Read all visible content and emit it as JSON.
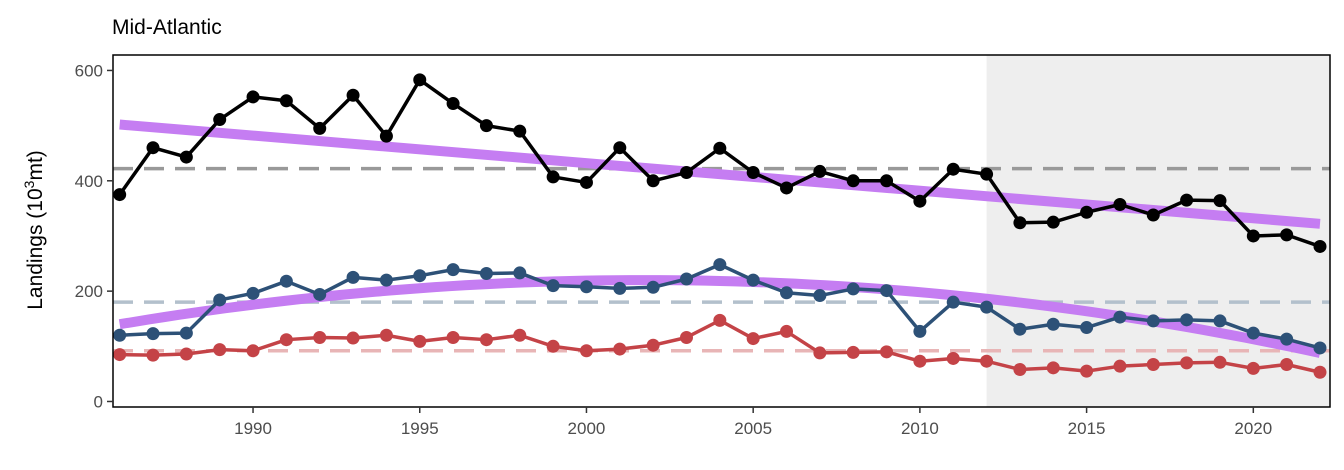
{
  "chart_data": {
    "type": "line",
    "title": "Mid-Atlantic",
    "xlabel": "",
    "ylabel": "Landings (10",
    "ylabel_superscript": "3",
    "ylabel_suffix": "mt)",
    "xlim": [
      1985.8,
      2022.3
    ],
    "ylim": [
      -10,
      628
    ],
    "x_ticks": [
      1990,
      1995,
      2000,
      2005,
      2010,
      2015,
      2020
    ],
    "y_ticks": [
      0,
      200,
      400,
      600
    ],
    "grid": false,
    "legend": "none",
    "shaded_region": {
      "x_start": 2012,
      "x_end": 2022.3,
      "color": "#eeeeee"
    },
    "x": [
      1986,
      1987,
      1988,
      1989,
      1990,
      1991,
      1992,
      1993,
      1994,
      1995,
      1996,
      1997,
      1998,
      1999,
      2000,
      2001,
      2002,
      2003,
      2004,
      2005,
      2006,
      2007,
      2008,
      2009,
      2010,
      2011,
      2012,
      2013,
      2014,
      2015,
      2016,
      2017,
      2018,
      2019,
      2020,
      2021,
      2022
    ],
    "series": [
      {
        "color": "#000000",
        "mean": 422,
        "mean_color": "#999999",
        "values": [
          375,
          460,
          443,
          511,
          552,
          545,
          495,
          555,
          481,
          583,
          540,
          500,
          490,
          407,
          397,
          460,
          400,
          415,
          459,
          415,
          387,
          417,
          400,
          400,
          363,
          421,
          412,
          324,
          325,
          343,
          357,
          338,
          365,
          364,
          300,
          302,
          281
        ],
        "trend": {
          "start": 502,
          "end": 322,
          "shape": "linear",
          "color": "#c57df2"
        }
      },
      {
        "color": "#2d5177",
        "mean": 180,
        "mean_color": "#b3c0cc",
        "values": [
          120,
          123,
          124,
          184,
          196,
          218,
          194,
          225,
          220,
          228,
          239,
          232,
          233,
          210,
          208,
          205,
          207,
          222,
          248,
          220,
          197,
          192,
          204,
          201,
          127,
          180,
          171,
          131,
          140,
          134,
          153,
          146,
          148,
          146,
          124,
          113,
          97
        ],
        "trend": {
          "start": 140,
          "peak_x": 2002,
          "peak": 220,
          "end": 88,
          "shape": "quadratic",
          "color": "#c57df2"
        }
      },
      {
        "color": "#c44347",
        "mean": 92,
        "mean_color": "#e8b5b6",
        "values": [
          85,
          84,
          86,
          94,
          92,
          112,
          116,
          115,
          120,
          109,
          116,
          112,
          120,
          100,
          92,
          95,
          102,
          116,
          147,
          114,
          127,
          88,
          89,
          90,
          73,
          78,
          73,
          58,
          61,
          55,
          64,
          67,
          70,
          71,
          60,
          67,
          53
        ]
      }
    ]
  }
}
